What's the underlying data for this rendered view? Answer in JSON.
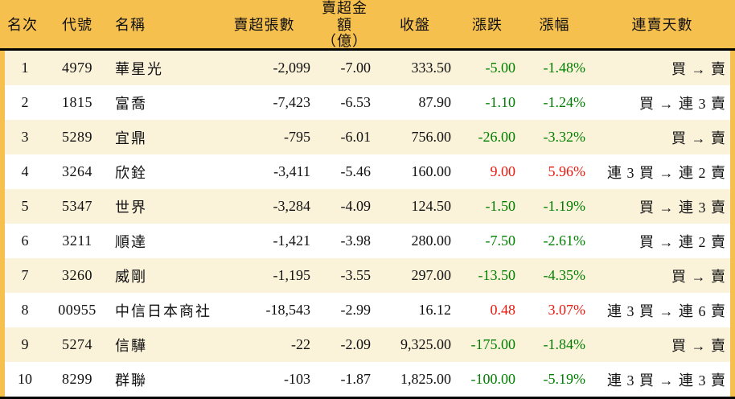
{
  "colors": {
    "header_bg": "#f6c04f",
    "row_alt_bg": "#fbf2da",
    "row_bg": "#ffffff",
    "up": "#e8190f",
    "down": "#008000"
  },
  "table": {
    "columns": [
      {
        "key": "rank",
        "label": "名次"
      },
      {
        "key": "code",
        "label": "代號"
      },
      {
        "key": "name",
        "label": "名稱"
      },
      {
        "key": "sell_volume",
        "label": "賣超張數"
      },
      {
        "key": "sell_amount",
        "label": "賣超金額",
        "label_line2": "（億）"
      },
      {
        "key": "close",
        "label": "收盤"
      },
      {
        "key": "change",
        "label": "漲跌"
      },
      {
        "key": "change_pct",
        "label": "漲幅"
      },
      {
        "key": "streak",
        "label": "連賣天數"
      }
    ],
    "rows": [
      {
        "rank": "1",
        "code": "4979",
        "name": "華星光",
        "sell_volume": "-2,099",
        "sell_amount": "-7.00",
        "close": "333.50",
        "change": "-5.00",
        "change_pct": "-1.48%",
        "direction": "down",
        "streak": "買 → 賣"
      },
      {
        "rank": "2",
        "code": "1815",
        "name": "富喬",
        "sell_volume": "-7,423",
        "sell_amount": "-6.53",
        "close": "87.90",
        "change": "-1.10",
        "change_pct": "-1.24%",
        "direction": "down",
        "streak": "買 → 連 3 賣"
      },
      {
        "rank": "3",
        "code": "5289",
        "name": "宜鼎",
        "sell_volume": "-795",
        "sell_amount": "-6.01",
        "close": "756.00",
        "change": "-26.00",
        "change_pct": "-3.32%",
        "direction": "down",
        "streak": "買 → 賣"
      },
      {
        "rank": "4",
        "code": "3264",
        "name": "欣銓",
        "sell_volume": "-3,411",
        "sell_amount": "-5.46",
        "close": "160.00",
        "change": "9.00",
        "change_pct": "5.96%",
        "direction": "up",
        "streak": "連 3 買 → 連 2 賣"
      },
      {
        "rank": "5",
        "code": "5347",
        "name": "世界",
        "sell_volume": "-3,284",
        "sell_amount": "-4.09",
        "close": "124.50",
        "change": "-1.50",
        "change_pct": "-1.19%",
        "direction": "down",
        "streak": "買 → 連 3 賣"
      },
      {
        "rank": "6",
        "code": "3211",
        "name": "順達",
        "sell_volume": "-1,421",
        "sell_amount": "-3.98",
        "close": "280.00",
        "change": "-7.50",
        "change_pct": "-2.61%",
        "direction": "down",
        "streak": "買 → 連 2 賣"
      },
      {
        "rank": "7",
        "code": "3260",
        "name": "威剛",
        "sell_volume": "-1,195",
        "sell_amount": "-3.55",
        "close": "297.00",
        "change": "-13.50",
        "change_pct": "-4.35%",
        "direction": "down",
        "streak": "買 → 賣"
      },
      {
        "rank": "8",
        "code": "00955",
        "name": "中信日本商社",
        "sell_volume": "-18,543",
        "sell_amount": "-2.99",
        "close": "16.12",
        "change": "0.48",
        "change_pct": "3.07%",
        "direction": "up",
        "streak": "連 3 買 → 連 6 賣"
      },
      {
        "rank": "9",
        "code": "5274",
        "name": "信驊",
        "sell_volume": "-22",
        "sell_amount": "-2.09",
        "close": "9,325.00",
        "change": "-175.00",
        "change_pct": "-1.84%",
        "direction": "down",
        "streak": "買 → 賣"
      },
      {
        "rank": "10",
        "code": "8299",
        "name": "群聯",
        "sell_volume": "-103",
        "sell_amount": "-1.87",
        "close": "1,825.00",
        "change": "-100.00",
        "change_pct": "-5.19%",
        "direction": "down",
        "streak": "連 3 買 → 連 3 賣"
      }
    ]
  }
}
